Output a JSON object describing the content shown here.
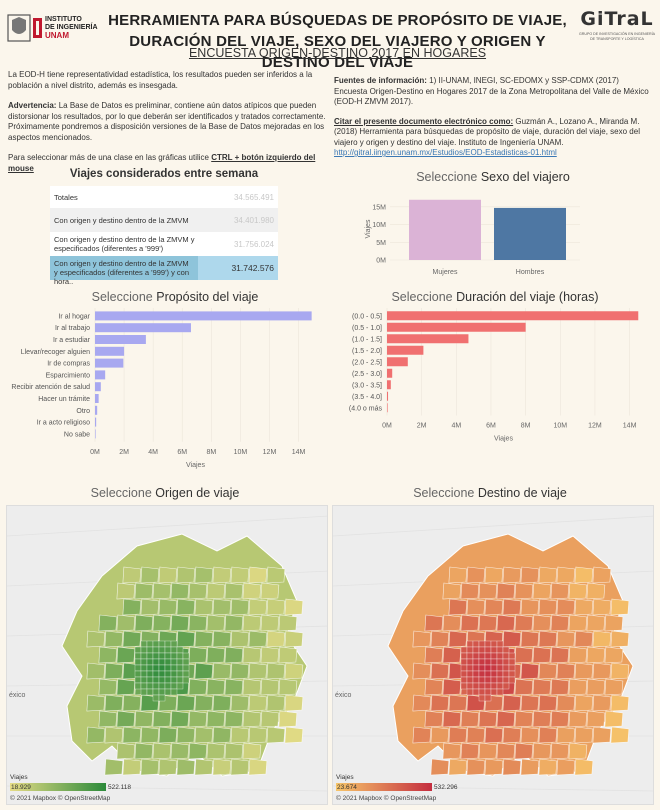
{
  "header": {
    "title": "HERRAMIENTA PARA BÚSQUEDAS DE PROPÓSITO DE VIAJE, DURACIÓN DEL VIAJE, SEXO DEL VIAJERO Y ORIGEN Y DESTINO DEL VIAJE",
    "subtitle": "ENCUESTA ORIGEN-DESTINO 2017 EN HOGARES",
    "unam_logo_lines": [
      "INSTITUTO",
      "DE INGENIERÍA",
      "UNAM"
    ],
    "gitral_logo": "GiTraL",
    "gitral_caption": "GRUPO DE INVESTIGACIÓN EN INGENIERÍA DE TRANSPORTE Y LOGÍSTICA"
  },
  "intro": {
    "p1": "La EOD-H tiene representatividad estadística, los resultados pueden ser inferidos a la población a nivel distrito, además es insesgada.",
    "warning_label": "Advertencia:",
    "warning_text": " La Base de Datos es preliminar, contiene aún datos atípicos que pueden distorsionar los resultados, por lo que deberán ser identificados y tratados correctamente. Próximamente pondremos a disposición versiones de la Base de Datos mejoradas en los aspectos mencionados.",
    "select_text": "Para seleccionar más de una clase en las gráficas utilice ",
    "select_keys": "CTRL + botón izquierdo del mouse"
  },
  "sources": {
    "label": "Fuentes de información:",
    "text": " 1) II-UNAM, INEGI, SC-EDOMX y SSP-CDMX (2017) Encuesta Origen-Destino en Hogares 2017 de la Zona Metropolitana del Valle de México (EOD-H ZMVM 2017).",
    "cite_label": "Citar el presente documento electrónico como:",
    "cite_text": " Guzmán A., Lozano A., Miranda M. (2018) Herramienta para búsquedas de propósito de viaje, duración del viaje, sexo del viajero y origen y destino del viaje. Instituto de Ingeniería UNAM.",
    "url": "http://gitral.iingen.unam.mx/Estudios/EOD-Estadisticas-01.html"
  },
  "trips_table": {
    "title": "Viajes considerados entre semana",
    "rows": [
      {
        "label": "Totales",
        "value": "34.565.491"
      },
      {
        "label": "Con origen y destino dentro de la ZMVM",
        "value": "34.401.980"
      },
      {
        "label": "Con origen y destino dentro de la ZMVM y especificados  (diferentes a '999')",
        "value": "31.756.024"
      },
      {
        "label": "Con origen y destino dentro de la ZMVM y especificados  (diferentes a '999') y con hora..",
        "value": "31.742.576"
      }
    ]
  },
  "sex_chart": {
    "prefix": "Seleccione ",
    "title": "Sexo del viajero",
    "chart_data": {
      "type": "bar",
      "categories": [
        "Mujeres",
        "Hombres"
      ],
      "values": [
        17.0,
        14.7
      ],
      "colors": [
        "#dbb3d6",
        "#4e77a3"
      ],
      "ylabel": "Viajes",
      "ylim": [
        0,
        17.5
      ],
      "yticks": [
        "0M",
        "5M",
        "10M",
        "15M"
      ],
      "unit": "millions"
    }
  },
  "purpose_chart": {
    "prefix": "Seleccione ",
    "title": "Propósito del viaje",
    "chart_data": {
      "type": "bar",
      "orientation": "horizontal",
      "categories": [
        "Ir al hogar",
        "Ir al trabajo",
        "Ir a estudiar",
        "Llevar/recoger alguien",
        "Ir de compras",
        "Esparcimiento",
        "Recibir atención de salud",
        "Hacer un trámite",
        "Otro",
        "Ir a acto religioso",
        "No sabe"
      ],
      "values": [
        14.9,
        6.6,
        3.5,
        2.0,
        1.95,
        0.7,
        0.4,
        0.25,
        0.15,
        0.08,
        0.02
      ],
      "color": "#a8a8f0",
      "xlabel": "Viajes",
      "xlim": [
        0,
        15.2
      ],
      "xticks": [
        "0M",
        "2M",
        "4M",
        "6M",
        "8M",
        "10M",
        "12M",
        "14M"
      ],
      "unit": "millions"
    }
  },
  "duration_chart": {
    "prefix": "Seleccione ",
    "title": "Duración del viaje (horas)",
    "chart_data": {
      "type": "bar",
      "orientation": "horizontal",
      "categories": [
        "(0.0 - 0.5]",
        "(0.5 - 1.0]",
        "(1.0 - 1.5]",
        "(1.5 - 2.0]",
        "(2.0 - 2.5]",
        "(2.5 - 3.0]",
        "(3.0 - 3.5]",
        "(3.5 - 4.0]",
        "(4.0 o más"
      ],
      "values": [
        14.5,
        8.0,
        4.7,
        2.1,
        1.2,
        0.3,
        0.22,
        0.06,
        0.03
      ],
      "color": "#f07070",
      "xlabel": "Viajes",
      "xlim": [
        0,
        14.6
      ],
      "xticks": [
        "0M",
        "2M",
        "4M",
        "6M",
        "8M",
        "10M",
        "12M",
        "14M"
      ],
      "unit": "millions"
    }
  },
  "origin_map": {
    "prefix": "Seleccione ",
    "title": "Origen de viaje",
    "side_label": "éxico",
    "legend_title": "Viajes",
    "legend_min": "18.929",
    "legend_max": "522.118",
    "attribution": "© 2021 Mapbox © OpenStreetMap",
    "color_low": "#e6dc86",
    "color_high": "#2b8a3a"
  },
  "dest_map": {
    "prefix": "Seleccione ",
    "title": "Destino de viaje",
    "side_label": "éxico",
    "legend_title": "Viajes",
    "legend_min": "23.674",
    "legend_max": "532.296",
    "attribution": "© 2021 Mapbox © OpenStreetMap",
    "color_low": "#f7c66a",
    "color_high": "#c42d3f"
  }
}
